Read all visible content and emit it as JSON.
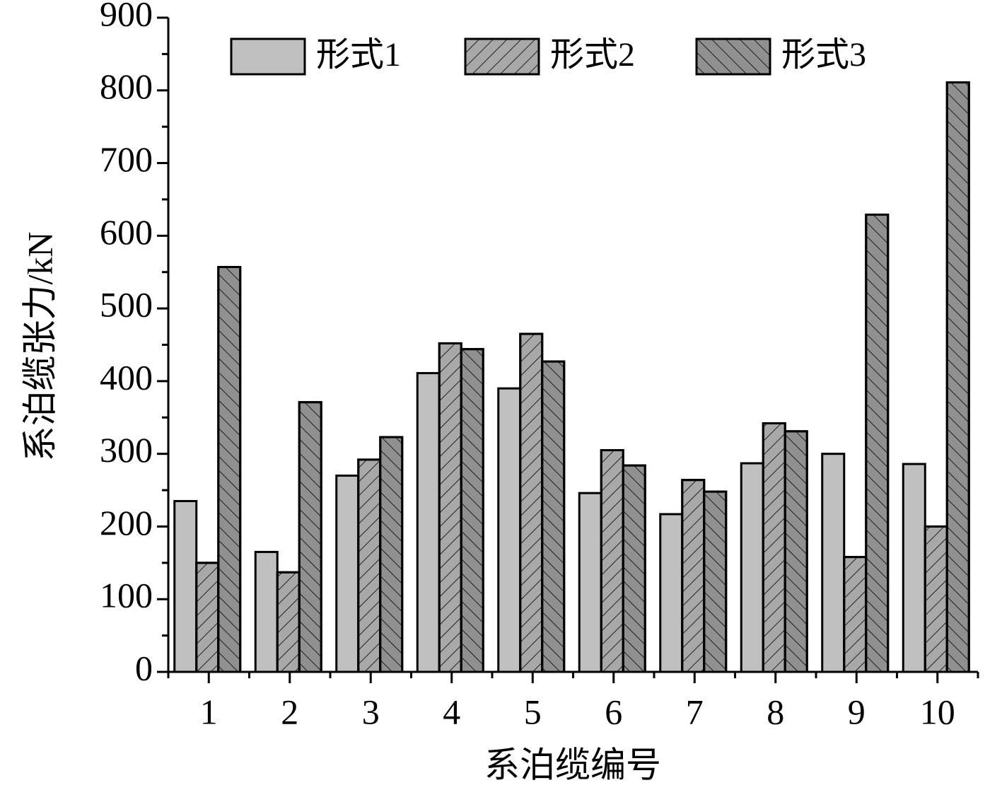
{
  "chart_data": {
    "type": "bar",
    "x_label": "系泊缆编号",
    "y_label": "系泊缆张力/kN",
    "categories": [
      "1",
      "2",
      "3",
      "4",
      "5",
      "6",
      "7",
      "8",
      "9",
      "10"
    ],
    "series": [
      {
        "name": "形式1",
        "color": "#c0c0c0",
        "hatch": "none",
        "values": [
          235,
          165,
          270,
          411,
          390,
          246,
          217,
          287,
          300,
          286
        ]
      },
      {
        "name": "形式2",
        "color": "#a8a8a8",
        "hatch": "forward",
        "values": [
          150,
          137,
          292,
          452,
          465,
          305,
          264,
          342,
          158,
          200
        ]
      },
      {
        "name": "形式3",
        "color": "#909090",
        "hatch": "back",
        "values": [
          557,
          371,
          323,
          444,
          427,
          284,
          248,
          331,
          629,
          811
        ]
      }
    ],
    "ylim": [
      0,
      900
    ],
    "yticks": [
      0,
      100,
      200,
      300,
      400,
      500,
      600,
      700,
      800,
      900
    ],
    "legend": "top"
  }
}
